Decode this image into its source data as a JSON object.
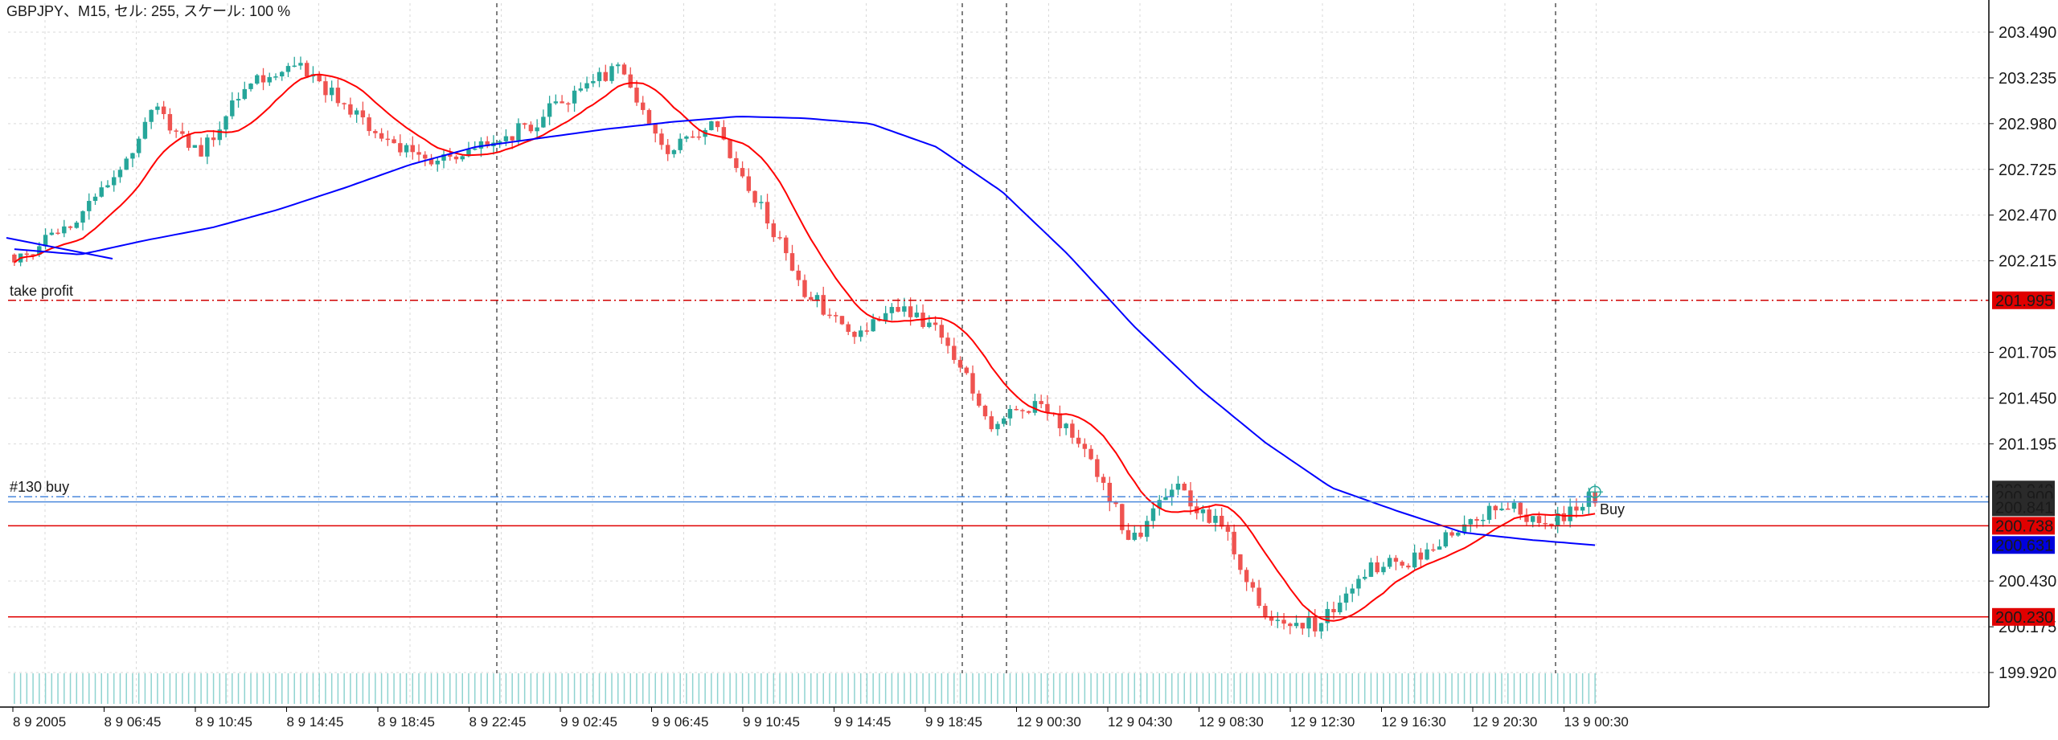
{
  "header": {
    "title": "GBPJPY、M15, セル: 255, スケール: 100 %"
  },
  "colors": {
    "background": "#ffffff",
    "grid": "#d9d9d9",
    "axis": "#000000",
    "bull": "#26a69a",
    "bear": "#ef5350",
    "ma_fast": "#ff0000",
    "ma_slow": "#0000ff",
    "volume": "#8fd3d0",
    "take_profit": "#d00000",
    "order_line": "#4b89dc",
    "stop_line": "#e00000",
    "tag_red": "#e00000",
    "tag_blue": "#0000dd",
    "tag_dark": "#2a2a2a"
  },
  "chart_data": {
    "type": "candlestick",
    "symbol": "GBPJPY",
    "timeframe": "M15",
    "ylim": [
      199.8,
      203.6
    ],
    "y_ticks": [
      "203.490",
      "203.235",
      "202.980",
      "202.725",
      "202.470",
      "202.215",
      "201.705",
      "201.450",
      "201.195",
      "200.430",
      "200.175",
      "199.920"
    ],
    "x_ticks": [
      "8 9 2005",
      "8 9 06:45",
      "8 9 10:45",
      "8 9 14:45",
      "8 9 18:45",
      "8 9 22:45",
      "9 9 02:45",
      "9 9 06:45",
      "9 9 10:45",
      "9 9 14:45",
      "9 9 18:45",
      "12 9 00:30",
      "12 9 04:30",
      "12 9 08:30",
      "12 9 12:30",
      "12 9 16:30",
      "12 9 20:30",
      "13 9 00:30"
    ],
    "grid": true,
    "price_path": [
      202.25,
      202.35,
      202.62,
      203.05,
      202.82,
      203.18,
      203.35,
      203.1,
      202.88,
      202.75,
      202.88,
      202.95,
      203.15,
      203.3,
      202.82,
      203.0,
      202.55,
      202.05,
      201.8,
      201.95,
      201.8,
      201.3,
      201.42,
      201.2,
      200.65,
      200.95,
      200.72,
      200.2,
      200.18,
      200.48,
      200.55,
      200.7,
      200.85,
      200.75,
      200.9
    ],
    "candle_count": 255,
    "indicators": [
      "moving average (red, fast)",
      "moving average (blue, slow)"
    ],
    "ma_slow_path": [
      202.28,
      202.25,
      202.33,
      202.4,
      202.5,
      202.62,
      202.75,
      202.85,
      202.9,
      202.95,
      202.99,
      203.02,
      203.01,
      202.98,
      202.85,
      202.6,
      202.25,
      201.85,
      201.5,
      201.2,
      200.95,
      200.82,
      200.7,
      200.66,
      200.63
    ],
    "hlines": [
      {
        "label": "take profit",
        "value": 201.995,
        "tag": "201.995",
        "style": "dash-dot",
        "color": "#d00000"
      },
      {
        "label": "#130 buy",
        "value": 200.9,
        "tag": "200.900",
        "style": "dash-dot",
        "color": "#4b89dc"
      },
      {
        "label": "",
        "value": 200.738,
        "tag": "200.738",
        "style": "solid",
        "color": "#e00000"
      },
      {
        "label": "",
        "value": 200.23,
        "tag": "200.230",
        "style": "solid",
        "color": "#e00000"
      }
    ],
    "price_tags": [
      {
        "text": "201.995",
        "value": 201.995,
        "bg": "#e00000"
      },
      {
        "text": "200.940",
        "value": 200.94,
        "bg": "#2a2a2a"
      },
      {
        "text": "200.900",
        "value": 200.9,
        "bg": "#2a2a2a"
      },
      {
        "text": "200.841",
        "value": 200.841,
        "bg": "#2a2a2a"
      },
      {
        "text": "200.738",
        "value": 200.738,
        "bg": "#e00000"
      },
      {
        "text": "200.631",
        "value": 200.631,
        "bg": "#0000dd"
      },
      {
        "text": "200.230",
        "value": 200.23,
        "bg": "#e00000"
      }
    ],
    "annotations": [
      {
        "text": "take profit",
        "attached_to": 201.995
      },
      {
        "text": "#130 buy",
        "attached_to": 200.9
      },
      {
        "text": "Buy",
        "attached_to": 200.9
      }
    ],
    "session_separators": [
      "8 9 22:45",
      "9 9 18:45",
      "12 9 00:30",
      "12 9 20:30"
    ],
    "volume": "teal histogram at bottom"
  }
}
